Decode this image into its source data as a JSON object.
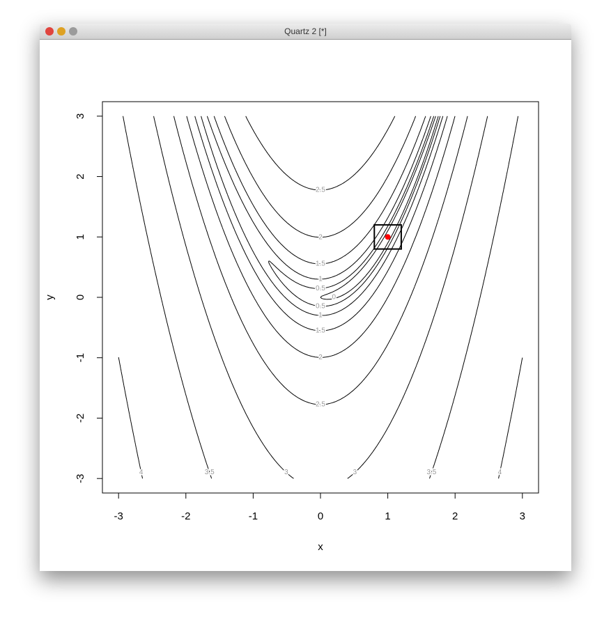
{
  "window_title": "Quartz 2 [*]",
  "chart_data": {
    "type": "contour",
    "x_label": "x",
    "y_label": "y",
    "xlim": [
      -3.24,
      3.24
    ],
    "ylim": [
      -3.24,
      3.24
    ],
    "xticks": [
      -3,
      -2,
      -1,
      0,
      1,
      2,
      3
    ],
    "yticks": [
      -3,
      -2,
      -1,
      0,
      1,
      2,
      3
    ],
    "levels": [
      0,
      0.5,
      1,
      1.5,
      2,
      2.5,
      3,
      3.5,
      4
    ],
    "box": {
      "xlim": [
        0.8,
        1.2
      ],
      "ylim": [
        0.8,
        1.2
      ]
    },
    "point": {
      "x": 1,
      "y": 1,
      "color": "red"
    }
  }
}
